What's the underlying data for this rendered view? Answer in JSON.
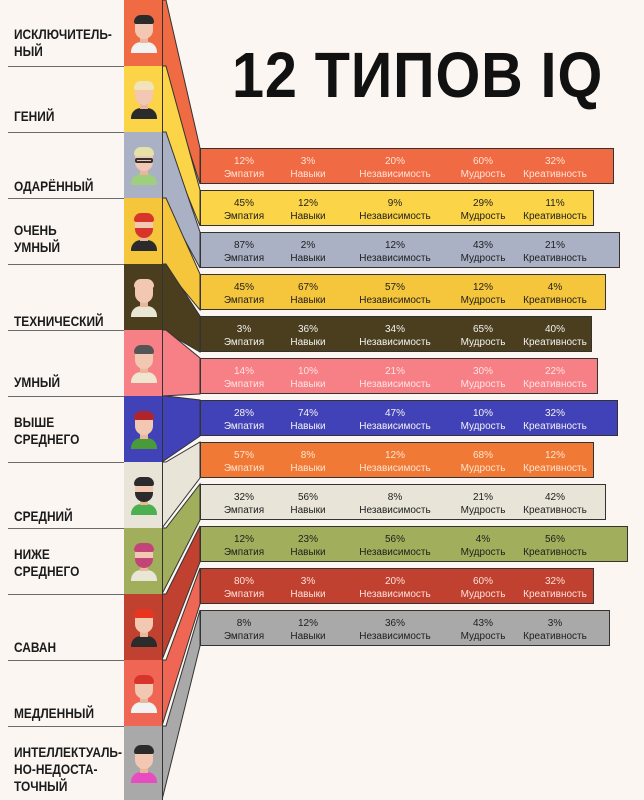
{
  "title": "12 ТИПОВ IQ",
  "types": [
    {
      "label": "ИСКЛЮЧИТЕЛЬ-\nНЫЙ",
      "color": "#f06a43",
      "hair": "#2b2b2b",
      "shirt": "#f2f2f2"
    },
    {
      "label": "ГЕНИЙ",
      "color": "#fbd447",
      "hair": "#f3e3b8",
      "shirt": "#2b2b2b"
    },
    {
      "label": "ОДАРЁННЫЙ",
      "color": "#aab1c4",
      "hair": "#e3e3a8",
      "shirt": "#9ecf7c"
    },
    {
      "label": "ОЧЕНЬ\nУМНЫЙ",
      "color": "#f5c63c",
      "hair": "#d8342b",
      "shirt": "#2b2b2b"
    },
    {
      "label": "ТЕХНИЧЕСКИЙ",
      "color": "#4a3e1f",
      "hair": "#f2c8b2",
      "shirt": "#e9e6d6"
    },
    {
      "label": "УМНЫЙ",
      "color": "#f77f86",
      "hair": "#555555",
      "shirt": "#f0e6cf"
    },
    {
      "label": "ВЫШЕ\nСРЕДНЕГО",
      "color": "#4242b8",
      "hair": "#b0252b",
      "shirt": "#4a9a3a"
    },
    {
      "label": "СРЕДНИЙ",
      "color": "#e8e4d8",
      "hair": "#2b2b2b",
      "shirt": "#4caf50"
    },
    {
      "label": "НИЖЕ\nСРЕДНЕГО",
      "color": "#a1af5d",
      "hair": "#c2457a",
      "shirt": "#e9e6d6"
    },
    {
      "label": "САВАН",
      "color": "#c0412f",
      "hair": "#e8361e",
      "shirt": "#2b2b2b"
    },
    {
      "label": "МЕДЛЕННЫЙ",
      "color": "#ef6754",
      "hair": "#d8342b",
      "shirt": "#f2f2f2"
    },
    {
      "label": "ИНТЕЛЛЕКТУАЛЬ-\nНО-НЕДОСТА-\nТОЧНЫЙ",
      "color": "#a9a9a9",
      "hair": "#2b2b2b",
      "shirt": "#e74cc0"
    }
  ],
  "stat_names": [
    "Эмпатия",
    "Навыки",
    "Независимость",
    "Мудрость",
    "Креативность"
  ],
  "rows": [
    {
      "color": "#f06a43",
      "text_color": "#ffe3d6",
      "values": [
        "12%",
        "3%",
        "20%",
        "60%",
        "32%"
      ]
    },
    {
      "color": "#fbd447",
      "text_color": "#1e1e1e",
      "values": [
        "45%",
        "12%",
        "9%",
        "29%",
        "11%"
      ]
    },
    {
      "color": "#aab1c4",
      "text_color": "#1e1e1e",
      "values": [
        "87%",
        "2%",
        "12%",
        "43%",
        "21%"
      ]
    },
    {
      "color": "#f5c63c",
      "text_color": "#1e1e1e",
      "values": [
        "45%",
        "67%",
        "57%",
        "12%",
        "4%"
      ]
    },
    {
      "color": "#4a3e1f",
      "text_color": "#f2f2f2",
      "values": [
        "3%",
        "36%",
        "34%",
        "65%",
        "40%"
      ]
    },
    {
      "color": "#f77f86",
      "text_color": "#ffe4e4",
      "values": [
        "14%",
        "10%",
        "21%",
        "30%",
        "22%"
      ]
    },
    {
      "color": "#4242b8",
      "text_color": "#f2f2f2",
      "values": [
        "28%",
        "74%",
        "47%",
        "10%",
        "32%"
      ]
    },
    {
      "color": "#f07a35",
      "text_color": "#ffe3d0",
      "values": [
        "57%",
        "8%",
        "12%",
        "68%",
        "12%"
      ]
    },
    {
      "color": "#e8e4d8",
      "text_color": "#1e1e1e",
      "values": [
        "32%",
        "56%",
        "8%",
        "21%",
        "42%"
      ]
    },
    {
      "color": "#a1af5d",
      "text_color": "#1e1e1e",
      "values": [
        "12%",
        "23%",
        "56%",
        "4%",
        "56%"
      ]
    },
    {
      "color": "#c0412f",
      "text_color": "#ffe0d8",
      "values": [
        "80%",
        "3%",
        "20%",
        "60%",
        "32%"
      ]
    },
    {
      "color": "#a9a9a9",
      "text_color": "#1e1e1e",
      "values": [
        "8%",
        "12%",
        "36%",
        "43%",
        "3%"
      ]
    }
  ]
}
